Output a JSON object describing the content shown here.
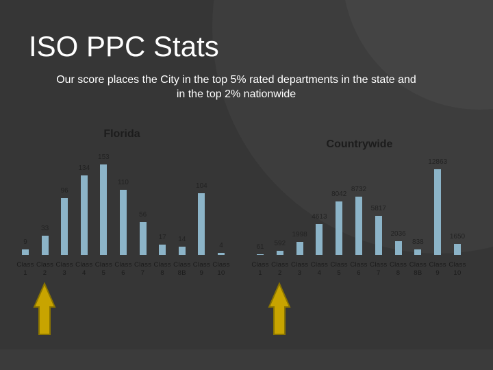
{
  "title": "ISO PPC Stats",
  "subtitle": "Our score places the City in the top 5% rated departments in the state and in the top 2% nationwide",
  "chart_data": [
    {
      "type": "bar",
      "title": "Florida",
      "categories": [
        "Class 1",
        "Class 2",
        "Class 3",
        "Class 4",
        "Class 5",
        "Class 6",
        "Class 7",
        "Class 8",
        "Class 8B",
        "Class 9",
        "Class 10"
      ],
      "values": [
        9,
        33,
        96,
        134,
        153,
        110,
        56,
        17,
        14,
        104,
        4
      ],
      "color": "#8cb4c8"
    },
    {
      "type": "bar",
      "title": "Countrywide",
      "categories": [
        "Class 1",
        "Class 2",
        "Class 3",
        "Class 4",
        "Class 5",
        "Class 6",
        "Class 7",
        "Class 8",
        "Class 8B",
        "Class 9",
        "Class 10"
      ],
      "values": [
        61,
        592,
        1998,
        4613,
        8042,
        8732,
        5817,
        2036,
        838,
        12863,
        1650
      ],
      "color": "#8cb4c8"
    }
  ]
}
